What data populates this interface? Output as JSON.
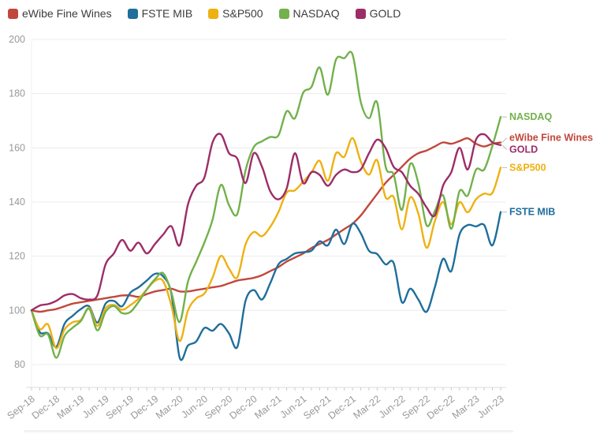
{
  "chart_data": {
    "type": "line",
    "title": "",
    "xlabel": "",
    "ylabel": "",
    "ylim": [
      80,
      200
    ],
    "y_ticks": [
      80,
      100,
      120,
      140,
      160,
      180,
      200
    ],
    "grid": "horizontal",
    "legend_position": "top-left",
    "x_tick_labels": [
      "Sep-18",
      "Dec-18",
      "Mar-19",
      "Jun-19",
      "Sep-19",
      "Dec-19",
      "Mar-20",
      "Jun-20",
      "Sep-20",
      "Dec-20",
      "Mar-21",
      "Jun-21",
      "Sep-21",
      "Dec-21",
      "Mar-22",
      "Jun-22",
      "Sep-22",
      "Dec-22",
      "Mar-23",
      "Jun-23"
    ],
    "x_tick_every": 3,
    "points_frequency": "monthly",
    "series": [
      {
        "name": "eWibe Fine Wines",
        "color": "#c1473c",
        "end_label": "eWibe Fine Wines",
        "values": [
          100,
          99.5,
          100,
          100.5,
          101.5,
          102.5,
          103,
          103.5,
          104,
          104.5,
          105,
          105.5,
          105.5,
          105,
          106,
          107,
          107.5,
          108,
          107,
          107,
          107.5,
          108,
          108.5,
          109,
          110,
          111,
          111.5,
          112,
          113,
          114.5,
          116,
          118,
          119.5,
          121,
          123,
          124.5,
          126,
          128,
          130,
          132,
          135,
          139,
          143,
          147,
          150,
          153,
          156,
          158,
          159,
          160.5,
          162,
          161.5,
          162.5,
          163.5,
          161.5,
          160.5,
          161.5,
          162
        ]
      },
      {
        "name": "FSTE MIB",
        "color": "#1f6e9c",
        "end_label": "FSTE MIB",
        "values": [
          100,
          92,
          91.5,
          86.5,
          95,
          98,
          100.5,
          101.5,
          95.5,
          102.5,
          103.5,
          101.5,
          106.5,
          108.5,
          111,
          113.5,
          112.5,
          106,
          82.5,
          87,
          88.5,
          93.5,
          92.5,
          95,
          91.5,
          86.5,
          103.5,
          107.5,
          104,
          110,
          117,
          119,
          121,
          121.5,
          122,
          125.5,
          124,
          129.8,
          124.5,
          132,
          128.5,
          122,
          120.8,
          117,
          117.5,
          103,
          108,
          104,
          99.5,
          108.5,
          119,
          114.5,
          128,
          131.5,
          131,
          131.5,
          124,
          136.3
        ]
      },
      {
        "name": "S&P500",
        "color": "#eeb111",
        "end_label": "S&P500",
        "values": [
          100,
          93.1,
          94.8,
          86,
          92.9,
          95.6,
          96.5,
          100.9,
          94.3,
          100.8,
          102,
          100.2,
          101.9,
          104.3,
          107.7,
          110.9,
          110.8,
          101.7,
          88.7,
          99.9,
          104.4,
          106.2,
          112.1,
          120.1,
          115.4,
          112.2,
          124.3,
          128.9,
          127.4,
          130.8,
          136.3,
          143.5,
          144.3,
          147.5,
          150.8,
          155.2,
          147.8,
          158,
          156.7,
          163.6,
          155,
          150.1,
          155.4,
          141.8,
          141.8,
          129.9,
          141.7,
          135.7,
          123.1,
          132.9,
          140,
          131.8,
          139.9,
          136.2,
          141,
          143.1,
          143.4,
          152.7
        ]
      },
      {
        "name": "NASDAQ",
        "color": "#72b14b",
        "end_label": "NASDAQ",
        "values": [
          100,
          90.8,
          91.1,
          82.5,
          90.5,
          93.6,
          96.1,
          100.6,
          92.6,
          99.5,
          101.6,
          99,
          99.4,
          103.1,
          107.7,
          111.5,
          113.7,
          106.5,
          95.7,
          110.5,
          117.9,
          125,
          133.5,
          146.3,
          138.8,
          135.6,
          151.6,
          160.2,
          162.4,
          164,
          164.6,
          173.5,
          170.9,
          180.3,
          182.4,
          189.7,
          179.6,
          192.6,
          193.1,
          194.5,
          177,
          170.9,
          176.7,
          153.3,
          150.1,
          137.1,
          154,
          146.9,
          131.4,
          136.6,
          142.5,
          130.1,
          144,
          142.4,
          151.9,
          152,
          160.8,
          171.4
        ]
      },
      {
        "name": "GOLD",
        "color": "#9c2d68",
        "end_label": "GOLD",
        "values": [
          100,
          101.8,
          102.3,
          103.5,
          105.5,
          106,
          104.5,
          104,
          105.5,
          117,
          121,
          126,
          122,
          125,
          121,
          124.5,
          128,
          131,
          124,
          139,
          146,
          149,
          162,
          165,
          158,
          156,
          147,
          158,
          153,
          144,
          141,
          145,
          158,
          147,
          151,
          150,
          146,
          150,
          152,
          151,
          152,
          158,
          163,
          160,
          153,
          151,
          146,
          143,
          138,
          135,
          146,
          151,
          160,
          152,
          163,
          165,
          162,
          161
        ]
      }
    ]
  },
  "colors": {
    "grid": "#ececec",
    "axis_line": "#dddddd",
    "tick_mark": "#cccccc",
    "tick_text": "#999999",
    "legend_text": "#3d3d3d",
    "connector": "#bbbbbb"
  }
}
